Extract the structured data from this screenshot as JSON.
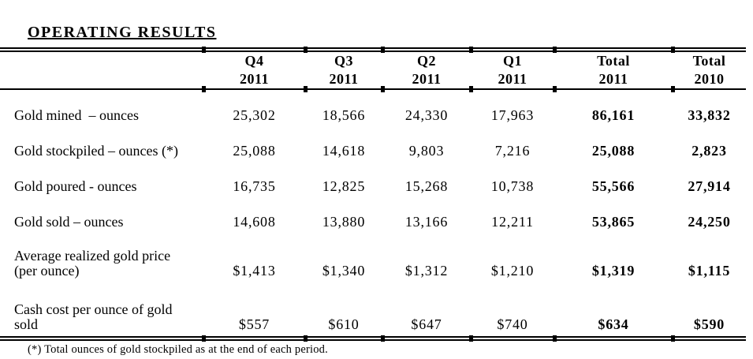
{
  "title": "OPERATING RESULTS",
  "table": {
    "headers": [
      {
        "line1": "Q4",
        "line2": "2011"
      },
      {
        "line1": "Q3",
        "line2": "2011"
      },
      {
        "line1": "Q2",
        "line2": "2011"
      },
      {
        "line1": "Q1",
        "line2": "2011"
      },
      {
        "line1": "Total",
        "line2": "2011"
      },
      {
        "line1": "Total",
        "line2": "2010"
      }
    ],
    "rows": [
      {
        "label": "Gold mined  – ounces",
        "values": [
          "25,302",
          "18,566",
          "24,330",
          "17,963",
          "86,161",
          "33,832"
        ]
      },
      {
        "label": "Gold stockpiled – ounces (*)",
        "values": [
          "25,088",
          "14,618",
          "9,803",
          "7,216",
          "25,088",
          "2,823"
        ]
      },
      {
        "label": "Gold poured - ounces",
        "values": [
          "16,735",
          "12,825",
          "15,268",
          "10,738",
          "55,566",
          "27,914"
        ]
      },
      {
        "label": "Gold sold – ounces",
        "values": [
          "14,608",
          "13,880",
          "13,166",
          "12,211",
          "53,865",
          "24,250"
        ]
      },
      {
        "label": "Average realized gold price (per ounce)",
        "values": [
          "$1,413",
          "$1,340",
          "$1,312",
          "$1,210",
          "$1,319",
          "$1,115"
        ]
      },
      {
        "label": "Cash cost per ounce of gold sold",
        "values": [
          "$557",
          "$610",
          "$647",
          "$740",
          "$634",
          "$590"
        ]
      }
    ]
  },
  "footnote": "(*) Total ounces of gold stockpiled as at the end of each period.",
  "colors": {
    "background": "#ffffff",
    "text": "#000000",
    "rule": "#000000"
  }
}
